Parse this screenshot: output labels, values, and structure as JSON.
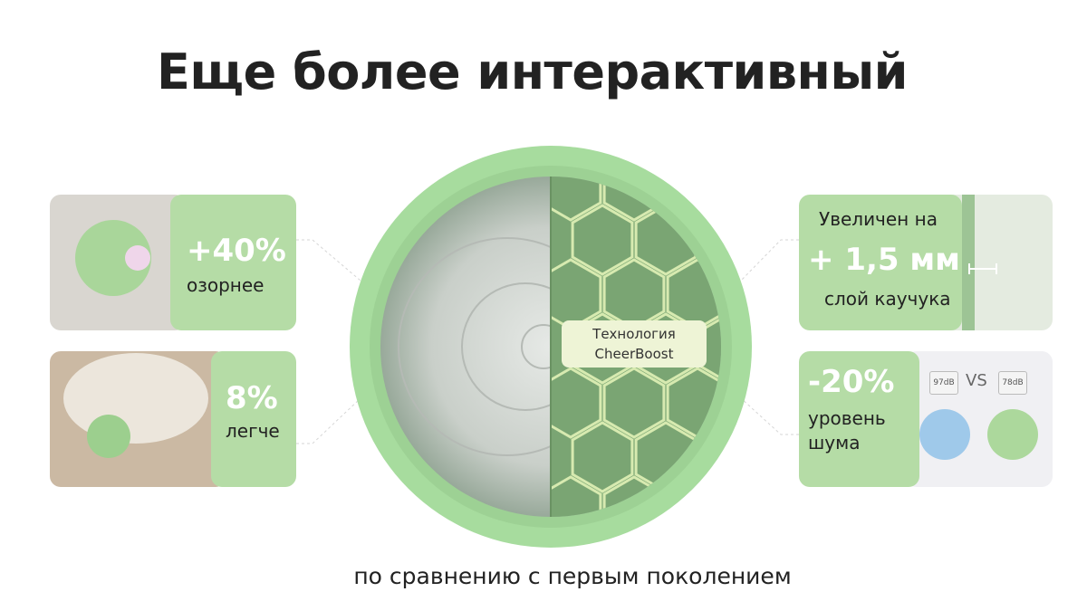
{
  "title": "Еще более интерактивный",
  "cards": {
    "playful": {
      "value": "+40%",
      "caption": "озорнее"
    },
    "lighter": {
      "value": "8%",
      "caption": "легче"
    },
    "rubber": {
      "top": "Увеличен на",
      "value": "+ 1,5 мм",
      "caption": "слой каучука"
    },
    "noise": {
      "value": "-20%",
      "caption_lines": [
        "уровень",
        "шума"
      ],
      "before": "97dB",
      "vs": "VS",
      "after": "78dB"
    }
  },
  "center": {
    "lines": [
      "Технология",
      "CheerBoost"
    ]
  },
  "footer": "по сравнению с первым поколением"
}
